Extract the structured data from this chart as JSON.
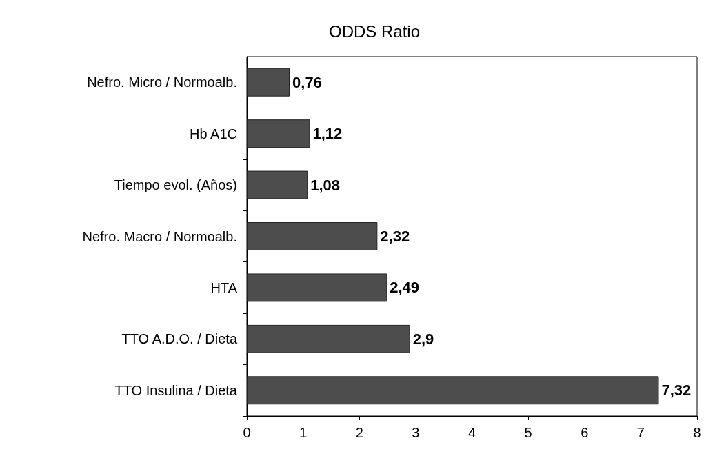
{
  "chart_data": {
    "type": "bar",
    "orientation": "horizontal",
    "title": "ODDS Ratio",
    "categories": [
      "Nefro. Micro / Normoalb.",
      "Hb A1C",
      "Tiempo evol. (Años)",
      "Nefro. Macro / Normoalb.",
      "HTA",
      "TTO A.D.O. / Dieta",
      "TTO Insulina / Dieta"
    ],
    "values": [
      0.76,
      1.12,
      1.08,
      2.32,
      2.49,
      2.9,
      7.32
    ],
    "value_labels": [
      "0,76",
      "1,12",
      "1,08",
      "2,32",
      "2,49",
      "2,9",
      "7,32"
    ],
    "color": "#4d4d4d",
    "xlim": [
      0,
      8
    ],
    "xticks": [
      0,
      1,
      2,
      3,
      4,
      5,
      6,
      7,
      8
    ],
    "grid": false
  }
}
